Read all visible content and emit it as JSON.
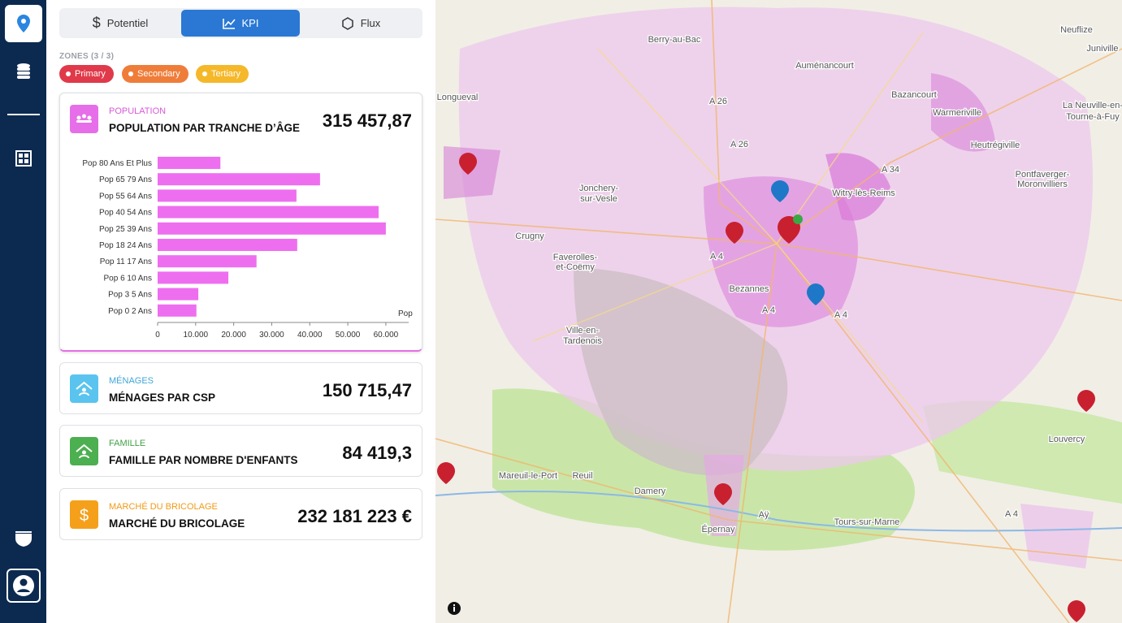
{
  "tabs": [
    "Potentiel",
    "KPI",
    "Flux"
  ],
  "zones": {
    "label": "ZONES (3 / 3)",
    "items": [
      "Primary",
      "Secondary",
      "Tertiary"
    ]
  },
  "cards": [
    {
      "category": "POPULATION",
      "title": "POPULATION PAR TRANCHE D’ÂGE",
      "value": "315 457,87"
    },
    {
      "category": "MÉNAGES",
      "title": "MÉNAGES PAR CSP",
      "value": "150 715,47"
    },
    {
      "category": "FAMILLE",
      "title": "FAMILLE PAR NOMBRE D'ENFANTS",
      "value": "84 419,3"
    },
    {
      "category": "MARCHÉ DU BRICOLAGE",
      "title": "MARCHÉ DU BRICOLAGE",
      "value": "232 181 223 €"
    }
  ],
  "chart_data": {
    "type": "bar",
    "orientation": "horizontal",
    "categories": [
      "Pop 80 Ans Et Plus",
      "Pop 65 79 Ans",
      "Pop 55 64 Ans",
      "Pop 40 54 Ans",
      "Pop 25 39 Ans",
      "Pop 18 24 Ans",
      "Pop 11 17 Ans",
      "Pop 6 10 Ans",
      "Pop 3 5 Ans",
      "Pop 0 2 Ans"
    ],
    "values": [
      16500,
      42700,
      36500,
      58100,
      60000,
      36700,
      26000,
      18600,
      10700,
      10200
    ],
    "color": "#ee6ef0",
    "xlabel": "Pop",
    "xlim": [
      0,
      66000
    ],
    "xticks": [
      0,
      {
        "value": 10000,
        "label": "10,000"
      },
      {
        "value": 20000,
        "label": "20,000"
      },
      {
        "value": 30000,
        "label": "30,000"
      },
      {
        "value": 40000,
        "label": "40,000"
      },
      {
        "value": 50000,
        "label": "50,000"
      },
      {
        "value": 60000,
        "label": "60,000"
      }
    ],
    "grid": false
  },
  "map": {
    "labels": [
      "Berry-au-Bac",
      "Neuflize",
      "Juniville",
      "Auménancourt",
      "Longueval",
      "Bazancourt",
      "Warmeriville",
      "La Neuville-en-",
      "Tourne-à-Fuy",
      "Heutrégiville",
      "Witry-lès-Reims",
      "Pontfaverger-",
      "Moronvilliers",
      "Jonchery-",
      "sur-Vesle",
      "Crugny",
      "Faverolles-",
      "et-Coëmy",
      "Bezannes",
      "Ville-en-",
      "Tardenois",
      "Louvercy",
      "Mareuil-le-Port",
      "Reuil",
      "Damery",
      "Aÿ",
      "Tours-sur-Marne",
      "Épernay"
    ],
    "roads": [
      "A 26",
      "A 26",
      "A 34",
      "A 4",
      "A 4",
      "A 4",
      "A 4"
    ]
  }
}
